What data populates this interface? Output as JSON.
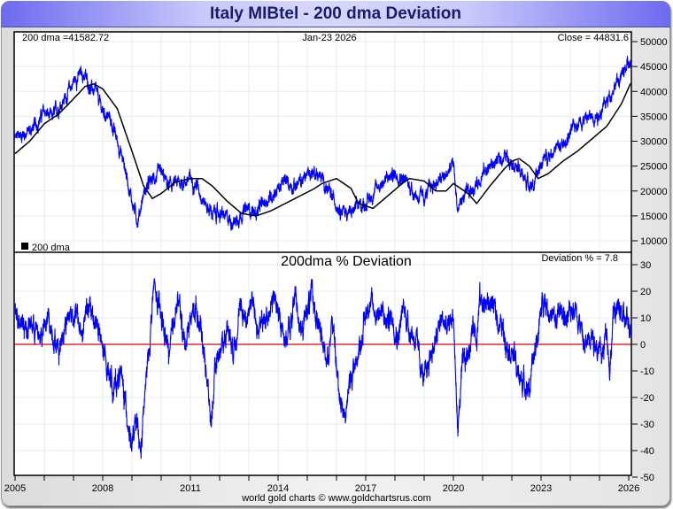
{
  "title": "Italy MIBtel - 200 dma Deviation",
  "footer": "world gold charts © www.goldchartsrus.com",
  "colors": {
    "price": "#0000ff",
    "dma": "#000000",
    "deviation": "#0000ff",
    "zero_line": "#dd0000",
    "grid": "#e3eef8"
  },
  "chart_data": [
    {
      "type": "line",
      "panel": "top",
      "title": "",
      "annotations": {
        "dma_label": "200 dma =41582.72",
        "date_label": "Jan-23  2026",
        "close_label": "Close = 44831.6",
        "legend_label": "200 dma"
      },
      "legend": "bottom-left",
      "ylim": [
        10000,
        50000
      ],
      "yticks": [
        50000,
        45000,
        40000,
        35000,
        30000,
        25000,
        20000,
        15000,
        10000
      ],
      "ytick_labels": [
        "50000",
        "45000",
        "40000",
        "35000",
        "30000",
        "25000",
        "20000",
        "15000",
        "10000"
      ],
      "grid": true,
      "series": [
        {
          "name": "MIBtel",
          "x": [
            2005.0,
            2005.25,
            2005.5,
            2005.75,
            2006.0,
            2006.25,
            2006.5,
            2006.75,
            2007.0,
            2007.25,
            2007.4,
            2007.6,
            2007.75,
            2008.0,
            2008.25,
            2008.5,
            2008.75,
            2009.0,
            2009.2,
            2009.4,
            2009.6,
            2009.75,
            2010.0,
            2010.25,
            2010.5,
            2010.75,
            2011.0,
            2011.25,
            2011.5,
            2011.75,
            2012.0,
            2012.25,
            2012.5,
            2012.75,
            2013.0,
            2013.25,
            2013.5,
            2013.75,
            2014.0,
            2014.25,
            2014.5,
            2014.75,
            2015.0,
            2015.25,
            2015.5,
            2015.75,
            2016.0,
            2016.25,
            2016.5,
            2016.75,
            2017.0,
            2017.25,
            2017.5,
            2017.75,
            2018.0,
            2018.25,
            2018.5,
            2018.75,
            2019.0,
            2019.25,
            2019.5,
            2019.75,
            2020.0,
            2020.15,
            2020.25,
            2020.5,
            2020.75,
            2021.0,
            2021.25,
            2021.5,
            2021.75,
            2022.0,
            2022.25,
            2022.5,
            2022.75,
            2023.0,
            2023.25,
            2023.5,
            2023.75,
            2024.0,
            2024.25,
            2024.5,
            2024.75,
            2025.0,
            2025.25,
            2025.5,
            2025.75,
            2026.0,
            2026.06
          ],
          "values": [
            30500,
            31500,
            32000,
            33500,
            36000,
            34500,
            37000,
            39000,
            42000,
            43500,
            43000,
            40500,
            40000,
            36000,
            34500,
            30000,
            25000,
            18000,
            14000,
            19500,
            21500,
            22500,
            23500,
            21000,
            21500,
            21800,
            22500,
            21000,
            17500,
            15500,
            15500,
            14500,
            13800,
            15500,
            16500,
            15500,
            17500,
            19000,
            20500,
            22000,
            21000,
            21500,
            23500,
            24000,
            22500,
            19500,
            17500,
            16000,
            15500,
            17000,
            17500,
            19500,
            21500,
            22500,
            23500,
            23000,
            21000,
            19000,
            18500,
            21000,
            22000,
            23000,
            25500,
            16000,
            18000,
            19500,
            21000,
            23500,
            25000,
            26000,
            27000,
            26500,
            24000,
            22000,
            21000,
            25500,
            27500,
            28500,
            29000,
            31500,
            34000,
            34500,
            35000,
            35500,
            38000,
            41000,
            43000,
            45500,
            44831.6
          ]
        },
        {
          "name": "200 dma",
          "x": [
            2005.0,
            2005.5,
            2006.0,
            2006.5,
            2007.0,
            2007.4,
            2007.7,
            2008.0,
            2008.5,
            2009.0,
            2009.4,
            2009.7,
            2010.0,
            2010.5,
            2011.0,
            2011.4,
            2011.75,
            2012.25,
            2012.75,
            2013.25,
            2013.75,
            2014.25,
            2014.75,
            2015.25,
            2015.5,
            2016.0,
            2016.5,
            2016.75,
            2017.25,
            2017.75,
            2018.25,
            2018.5,
            2019.0,
            2019.4,
            2019.75,
            2020.0,
            2020.5,
            2020.8,
            2021.25,
            2021.75,
            2022.0,
            2022.25,
            2022.6,
            2022.9,
            2023.25,
            2023.75,
            2024.25,
            2024.75,
            2025.25,
            2025.75,
            2026.06
          ],
          "values": [
            27500,
            30000,
            33500,
            35500,
            38500,
            41000,
            41500,
            40500,
            36500,
            28000,
            21000,
            18500,
            19500,
            21800,
            22500,
            22500,
            21000,
            18000,
            15500,
            15000,
            16000,
            17500,
            19000,
            20500,
            21500,
            22500,
            20500,
            17500,
            16500,
            19000,
            21500,
            22500,
            22000,
            20000,
            20000,
            21500,
            19500,
            17500,
            21000,
            24500,
            26000,
            26500,
            25000,
            22500,
            23500,
            26000,
            28000,
            30500,
            33000,
            37500,
            41582.72
          ]
        }
      ]
    },
    {
      "type": "line",
      "panel": "bottom",
      "title": "200dma  %  Deviation",
      "annotations": {
        "deviation_label": "Deviation % = 7.8"
      },
      "ylim": [
        -50,
        30
      ],
      "yticks": [
        30,
        20,
        10,
        0,
        -10,
        -20,
        -30,
        -40,
        -50
      ],
      "ytick_labels": [
        "30",
        "20",
        "10",
        "0",
        "-10",
        "-20",
        "-30",
        "-40",
        "-50"
      ],
      "xlim": [
        2005,
        2026
      ],
      "xticks": [
        2005,
        2008,
        2011,
        2014,
        2017,
        2020,
        2023,
        2026
      ],
      "xtick_labels": [
        "2005",
        "2008",
        "2011",
        "2014",
        "2017",
        "2020",
        "2023",
        "2026"
      ],
      "grid": true,
      "reference_line": 0,
      "series": [
        {
          "name": "% Deviation",
          "x": [
            2005.0,
            2005.2,
            2005.4,
            2005.6,
            2005.8,
            2006.0,
            2006.15,
            2006.3,
            2006.5,
            2006.7,
            2006.9,
            2007.1,
            2007.3,
            2007.45,
            2007.6,
            2007.8,
            2008.0,
            2008.2,
            2008.4,
            2008.6,
            2008.8,
            2009.0,
            2009.15,
            2009.3,
            2009.45,
            2009.6,
            2009.75,
            2009.9,
            2010.1,
            2010.3,
            2010.45,
            2010.6,
            2010.8,
            2011.0,
            2011.2,
            2011.35,
            2011.55,
            2011.7,
            2011.9,
            2012.1,
            2012.3,
            2012.45,
            2012.6,
            2012.75,
            2012.9,
            2013.1,
            2013.3,
            2013.5,
            2013.7,
            2013.9,
            2014.1,
            2014.3,
            2014.45,
            2014.6,
            2014.8,
            2015.0,
            2015.15,
            2015.3,
            2015.5,
            2015.7,
            2015.85,
            2016.0,
            2016.1,
            2016.3,
            2016.5,
            2016.7,
            2016.9,
            2017.1,
            2017.3,
            2017.5,
            2017.7,
            2017.9,
            2018.1,
            2018.3,
            2018.5,
            2018.7,
            2018.85,
            2019.0,
            2019.2,
            2019.4,
            2019.6,
            2019.8,
            2020.0,
            2020.1,
            2020.15,
            2020.3,
            2020.5,
            2020.7,
            2020.8,
            2020.9,
            2021.1,
            2021.3,
            2021.5,
            2021.7,
            2021.9,
            2022.1,
            2022.2,
            2022.4,
            2022.6,
            2022.8,
            2022.95,
            2023.1,
            2023.3,
            2023.5,
            2023.7,
            2023.9,
            2024.1,
            2024.3,
            2024.5,
            2024.7,
            2024.9,
            2025.1,
            2025.25,
            2025.35,
            2025.5,
            2025.7,
            2025.9,
            2026.06
          ],
          "values": [
            12,
            11,
            6,
            8,
            3,
            5,
            10,
            4,
            -2,
            8,
            12,
            11,
            3,
            14,
            12,
            8,
            -3,
            -10,
            -17,
            -10,
            -24,
            -38,
            -30,
            -42,
            -18,
            0,
            22,
            14,
            5,
            -5,
            12,
            16,
            0,
            10,
            14,
            7,
            -10,
            -30,
            -5,
            0,
            8,
            -2,
            7,
            14,
            9,
            18,
            5,
            8,
            14,
            17,
            7,
            2,
            8,
            20,
            3,
            14,
            18,
            12,
            0,
            -5,
            10,
            -10,
            -18,
            -27,
            -12,
            -5,
            5,
            17,
            12,
            13,
            8,
            11,
            3,
            14,
            6,
            2,
            -6,
            -15,
            -4,
            1,
            10,
            5,
            12,
            -20,
            -32,
            -10,
            -3,
            8,
            4,
            17,
            15,
            16,
            10,
            5,
            0,
            -5,
            -12,
            -14,
            -17,
            -2,
            8,
            19,
            12,
            8,
            14,
            7,
            16,
            10,
            -2,
            6,
            0,
            -5,
            8,
            -10,
            14,
            12,
            8,
            7.8
          ]
        }
      ]
    }
  ]
}
